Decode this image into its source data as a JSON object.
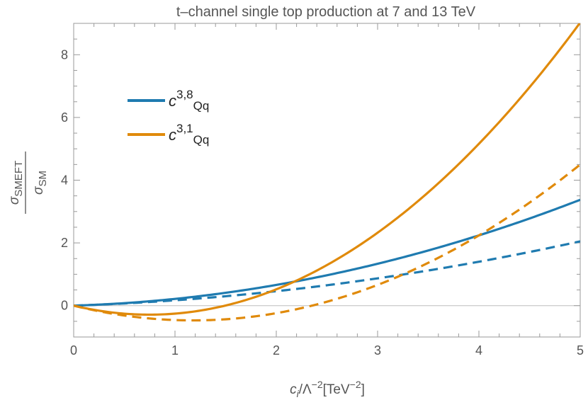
{
  "chart_data": {
    "type": "line",
    "title": "t–channel single top production at 7 and 13 TeV",
    "xlabel": "c_i/Λ^-2[TeV^-2]",
    "xlabel_parts": {
      "c": "c",
      "sub_i": "i",
      "slash_lambda": "/Λ",
      "sup_m2": "−2",
      "unit_open": "[TeV",
      "unit_sup": "−2",
      "unit_close": "]"
    },
    "ylabel_parts": {
      "num_sigma": "σ",
      "num_sub": "SMEFT",
      "den_sigma": "σ",
      "den_sub": "SM"
    },
    "xlim": [
      0,
      5
    ],
    "ylim": [
      -1,
      9
    ],
    "x_ticks": [
      0,
      1,
      2,
      3,
      4,
      5
    ],
    "y_ticks": [
      0,
      2,
      4,
      6,
      8
    ],
    "x_tick_labels": [
      "0",
      "1",
      "2",
      "3",
      "4",
      "5"
    ],
    "y_tick_labels": [
      "0",
      "2",
      "4",
      "6",
      "8"
    ],
    "legend_position": "upper-left",
    "legend": [
      {
        "c": "c",
        "sup": "3,8",
        "sub": "Qq",
        "color": "#1f7bb0"
      },
      {
        "c": "c",
        "sup": "3,1",
        "sub": "Qq",
        "color": "#e08a0b"
      }
    ],
    "series": [
      {
        "name": "c38Qq 13 TeV",
        "color": "#1f7bb0",
        "dashed": false,
        "a": 0.1,
        "b": 0.115
      },
      {
        "name": "c38Qq 7 TeV",
        "color": "#1f7bb0",
        "dashed": true,
        "a": 0.11,
        "b": 0.06
      },
      {
        "name": "c31Qq 13 TeV",
        "color": "#e08a0b",
        "dashed": false,
        "a": -0.77,
        "b": 0.515
      },
      {
        "name": "c31Qq 7 TeV",
        "color": "#e08a0b",
        "dashed": true,
        "a": -0.8,
        "b": 0.34
      }
    ]
  }
}
